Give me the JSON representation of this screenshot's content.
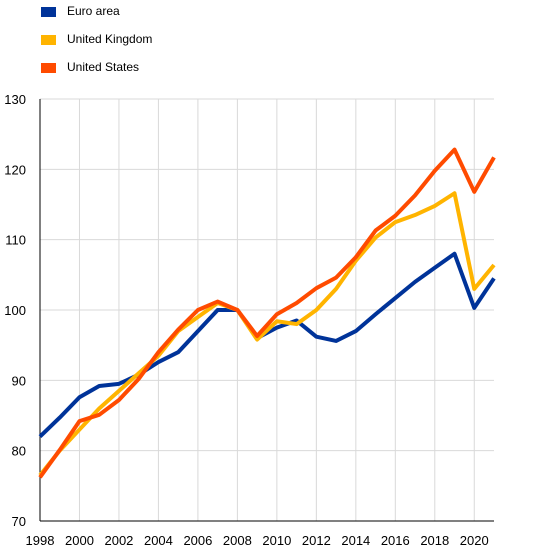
{
  "chart_data": {
    "type": "line",
    "title": "",
    "xlabel": "",
    "ylabel": "",
    "x": [
      1998,
      1999,
      2000,
      2001,
      2002,
      2003,
      2004,
      2005,
      2006,
      2007,
      2008,
      2009,
      2010,
      2011,
      2012,
      2013,
      2014,
      2015,
      2016,
      2017,
      2018,
      2019,
      2020,
      2021
    ],
    "xlim": [
      1998,
      2021
    ],
    "ylim": [
      70,
      130
    ],
    "x_ticks": [
      "1998",
      "2000",
      "2002",
      "2004",
      "2006",
      "2008",
      "2010",
      "2012",
      "2014",
      "2016",
      "2018",
      "2020"
    ],
    "y_ticks": [
      "70",
      "80",
      "90",
      "100",
      "110",
      "120",
      "130"
    ],
    "grid": "vertical and horizontal",
    "legend_position": "top-left",
    "series": [
      {
        "name": "Euro area",
        "color": "#003399",
        "values": [
          82.0,
          84.7,
          87.6,
          89.2,
          89.5,
          90.8,
          92.6,
          94.0,
          97.0,
          100.0,
          100.0,
          96.0,
          97.5,
          98.5,
          96.2,
          95.6,
          97.0,
          99.4,
          101.7,
          104.0,
          106.0,
          108.0,
          100.3,
          104.5
        ]
      },
      {
        "name": "United Kingdom",
        "color": "#FFB400",
        "values": [
          76.5,
          80.0,
          83.0,
          86.0,
          88.5,
          91.0,
          93.5,
          97.0,
          99.0,
          101.0,
          100.0,
          95.8,
          98.4,
          98.0,
          100.0,
          103.0,
          107.0,
          110.3,
          112.5,
          113.5,
          114.8,
          116.6,
          103.0,
          106.4
        ]
      },
      {
        "name": "United States",
        "color": "#FF4B00",
        "values": [
          76.2,
          80.1,
          84.2,
          85.1,
          87.2,
          90.2,
          94.0,
          97.2,
          100.0,
          101.2,
          100.0,
          96.3,
          99.4,
          101.0,
          103.1,
          104.6,
          107.5,
          111.3,
          113.4,
          116.3,
          119.8,
          122.8,
          116.8,
          121.7
        ]
      }
    ]
  }
}
